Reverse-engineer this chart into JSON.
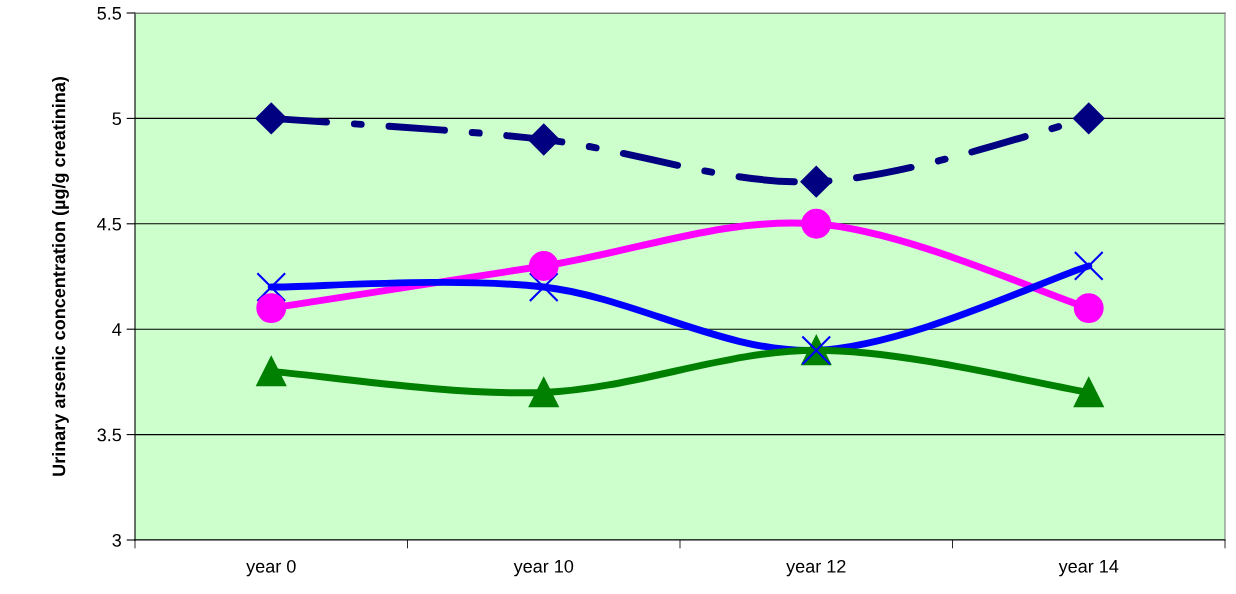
{
  "chart_data": {
    "type": "line",
    "ylabel": "Urinary arsenic concentration (µg/g creatinina)",
    "categories": [
      "year 0",
      "year 10",
      "year 12",
      "year 14"
    ],
    "series": [
      {
        "color": "#000080",
        "values": [
          5.0,
          4.9,
          4.7,
          5.0
        ],
        "marker": "diamond",
        "line_style": "dashed"
      },
      {
        "color": "#ff00ff",
        "values": [
          4.1,
          4.3,
          4.5,
          4.1
        ],
        "marker": "circle",
        "line_style": "solid"
      },
      {
        "color": "#0000ff",
        "values": [
          4.2,
          4.2,
          3.9,
          4.3
        ],
        "marker": "cross",
        "line_style": "solid"
      },
      {
        "color": "#008000",
        "values": [
          3.8,
          3.7,
          3.9,
          3.7
        ],
        "marker": "triangle",
        "line_style": "solid"
      }
    ],
    "ylim": [
      3,
      5.5
    ],
    "yticks": [
      3,
      3.5,
      4,
      4.5,
      5,
      5.5
    ],
    "grid": "y",
    "legend": false
  }
}
